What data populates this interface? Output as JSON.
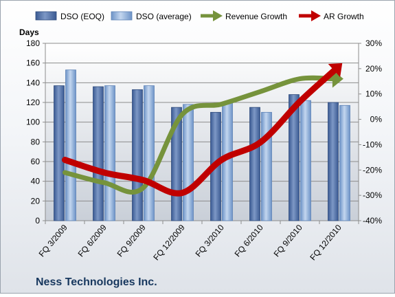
{
  "chart_data": {
    "type": "bar",
    "title": "Ness Technologies Inc.",
    "categories": [
      "FQ 3/2009",
      "FQ 6/2009",
      "FQ 9/2009",
      "FQ 12/2009",
      "FQ 3/2010",
      "FQ 6/2010",
      "FQ 9/2010",
      "FQ 12/2010"
    ],
    "ylabel": "Days",
    "ylim": [
      0,
      180
    ],
    "yticks": [
      "0",
      "20",
      "40",
      "60",
      "80",
      "100",
      "120",
      "140",
      "160",
      "180"
    ],
    "y2lim": [
      -40,
      30
    ],
    "y2ticks": [
      "-40%",
      "-30%",
      "-20%",
      "-10%",
      "0%",
      "10%",
      "20%",
      "30%"
    ],
    "grid": true,
    "legend_position": "top",
    "series": [
      {
        "name": "DSO (EOQ)",
        "type": "bar",
        "axis": "left",
        "color": "#4f6fa8",
        "values": [
          137,
          136,
          133,
          115,
          110,
          115,
          128,
          120
        ]
      },
      {
        "name": "DSO (average)",
        "type": "bar",
        "axis": "left",
        "color": "#7fa6d6",
        "values": [
          153,
          137,
          137,
          118,
          120,
          110,
          122,
          117
        ]
      },
      {
        "name": "Revenue Growth",
        "type": "line-arrow",
        "axis": "right",
        "color": "#76933c",
        "values": [
          -21,
          -25,
          -27,
          2,
          6,
          11,
          16,
          16
        ]
      },
      {
        "name": "AR Growth",
        "type": "line-arrow",
        "axis": "right",
        "color": "#c00000",
        "values": [
          -16,
          -21,
          -24,
          -29,
          -16,
          -9,
          7,
          21
        ]
      }
    ]
  }
}
